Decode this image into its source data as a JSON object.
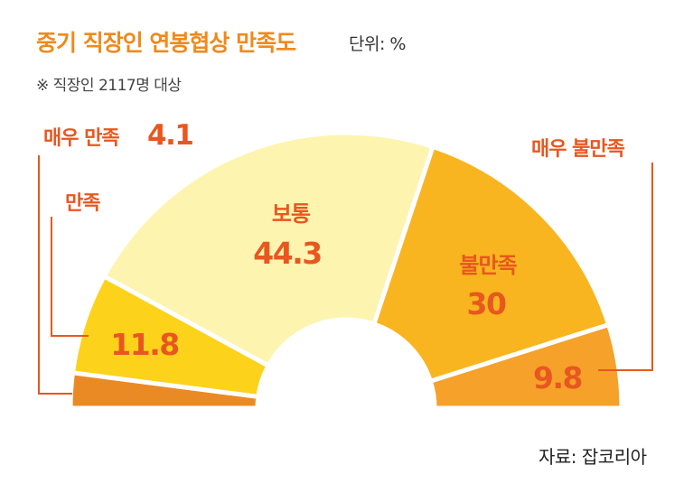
{
  "title": "중기 직장인 연봉협상 만족도",
  "unit": "단위: %",
  "note": "※ 직장인 2117명 대상",
  "source": "자료: 잡코리아",
  "chart_data": {
    "type": "pie",
    "variant": "semi-donut",
    "categories": [
      "매우 만족",
      "만족",
      "보통",
      "불만족",
      "매우 불만족"
    ],
    "values": [
      4.1,
      11.8,
      44.3,
      30,
      9.8
    ],
    "value_labels": [
      "4.1",
      "11.8",
      "44.3",
      "30",
      "9.8"
    ],
    "colors": [
      "#ea8a24",
      "#fdd21b",
      "#fdf4b0",
      "#f8b51f",
      "#f5a12a"
    ]
  }
}
